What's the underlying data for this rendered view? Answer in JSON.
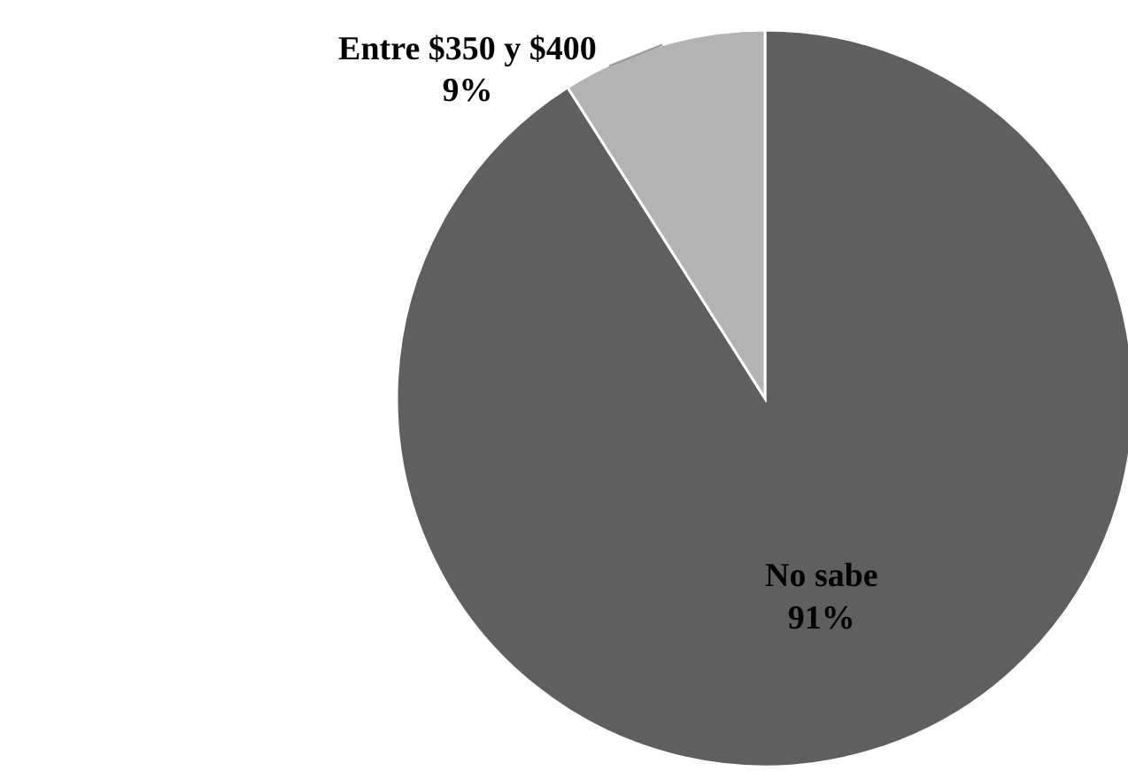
{
  "chart_data": {
    "type": "pie",
    "categories": [
      "No sabe",
      "Entre $350 y $400"
    ],
    "values": [
      91,
      9
    ],
    "colors": [
      "#5f5f5f",
      "#b3b3b3"
    ],
    "data_labels": true,
    "value_labels": [
      "91%",
      "9%"
    ]
  }
}
